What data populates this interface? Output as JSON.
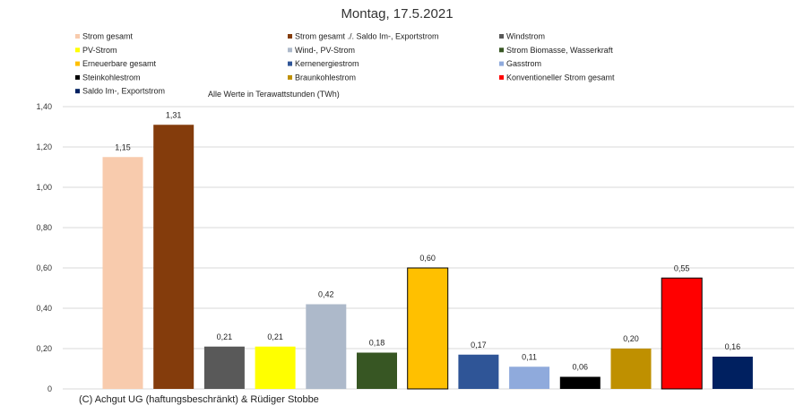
{
  "chart_data": {
    "type": "bar",
    "title": "Montag, 17.5.2021",
    "subtitle": "Alle Werte in Terawattstunden (TWh)",
    "footer": "(C) Achgut UG (haftungsbeschränkt) & Rüdiger Stobbe",
    "xlabel": "",
    "ylabel": "",
    "ylim": [
      0,
      1.4
    ],
    "yticks": [
      "0",
      "0,20",
      "0,40",
      "0,60",
      "0,80",
      "1,00",
      "1,20",
      "1,40"
    ],
    "grid": true,
    "legend_position": "top",
    "categories": [
      "Strom gesamt",
      "Strom gesamt ./. Saldo Im-, Exportstrom",
      "Windstrom",
      "PV-Strom",
      "Wind-, PV-Strom",
      "Strom Biomasse, Wasserkraft",
      "Erneuerbare gesamt",
      "Kernenergiestrom",
      "Gasstrom",
      "Steinkohlestrom",
      "Braunkohlestrom",
      "Konventioneller Strom gesamt",
      "Saldo Im-, Exportstrom"
    ],
    "values": [
      1.15,
      1.31,
      0.21,
      0.21,
      0.42,
      0.18,
      0.6,
      0.17,
      0.11,
      0.06,
      0.2,
      0.55,
      0.16
    ],
    "labels": [
      "1,15",
      "1,31",
      "0,21",
      "0,21",
      "0,42",
      "0,18",
      "0,60",
      "0,17",
      "0,11",
      "0,06",
      "0,20",
      "0,55",
      "0,16"
    ],
    "colors": [
      "#f8cbad",
      "#843c0c",
      "#595959",
      "#ffff00",
      "#adb9ca",
      "#375623",
      "#ffc000",
      "#2f5597",
      "#8faadc",
      "#000000",
      "#bf9000",
      "#ff0000",
      "#002060"
    ],
    "outlined": [
      false,
      false,
      false,
      false,
      false,
      false,
      true,
      false,
      false,
      false,
      false,
      true,
      false
    ],
    "legend_order": [
      0,
      1,
      2,
      3,
      4,
      5,
      6,
      7,
      8,
      9,
      10,
      11,
      12
    ]
  }
}
